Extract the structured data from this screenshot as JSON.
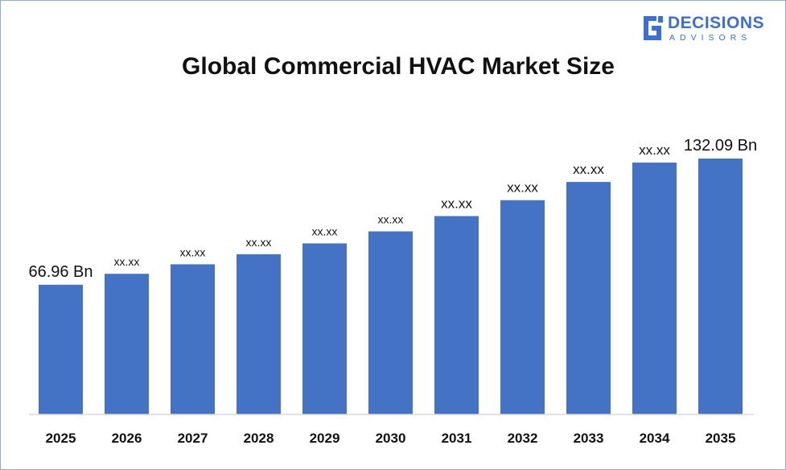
{
  "logo": {
    "main": "DECISIONS",
    "sub": "ADVISORS",
    "icon": "decisions-advisors-logo-icon"
  },
  "colors": {
    "bar": "#4472c4",
    "brand": "#3b6fd6",
    "border": "#8eaadb"
  },
  "chart_data": {
    "type": "bar",
    "title": "Global Commercial HVAC Market Size",
    "xlabel": "",
    "ylabel": "",
    "categories": [
      "2025",
      "2026",
      "2027",
      "2028",
      "2029",
      "2030",
      "2031",
      "2032",
      "2033",
      "2034",
      "2035"
    ],
    "values": [
      66.96,
      72.6,
      77.5,
      82.7,
      88.3,
      94.5,
      102.4,
      110.6,
      120.0,
      130.0,
      132.09
    ],
    "data_labels": [
      "66.96 Bn",
      "xx.xx",
      "xx.xx",
      "xx.xx",
      "xx.xx",
      "xx.xx",
      "xx.xx",
      "xx.xx",
      "xx.xx",
      "xx.xx",
      "132.09 Bn"
    ],
    "ylim": [
      0,
      160
    ],
    "grid": false,
    "legend": "none"
  }
}
